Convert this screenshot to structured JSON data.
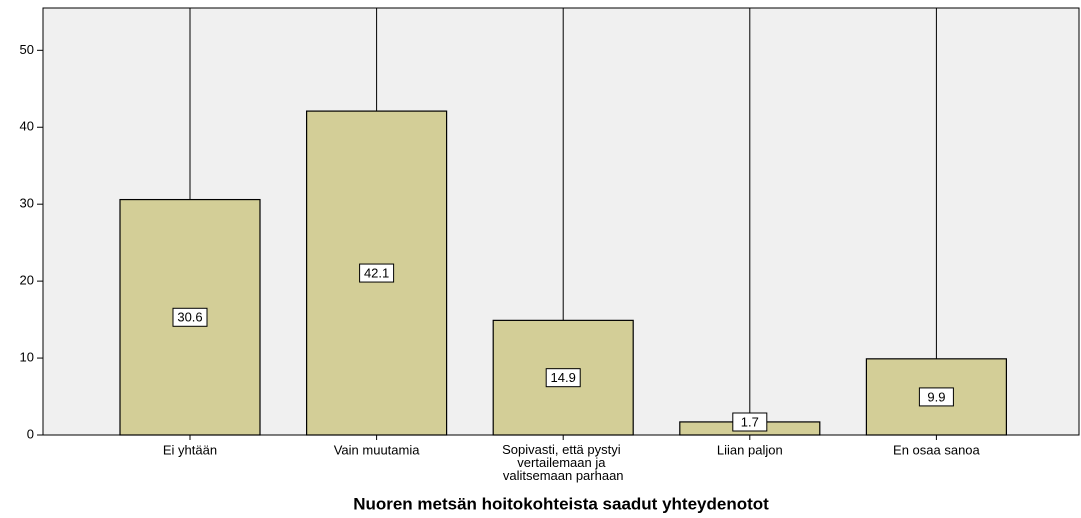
{
  "chart_data": {
    "type": "bar",
    "x_label": "Nuoren metsän hoitokohteista saadut yhteydenotot",
    "categories": [
      "Ei yhtään",
      "Vain muutamia",
      "Sopivasti, että pystyi vertailemaan ja valitsemaan parhaan",
      "Liian paljon",
      "En osaa sanoa"
    ],
    "values": [
      30.6,
      42.1,
      14.9,
      1.7,
      9.9
    ],
    "color": "#d3ce97",
    "ylim": [
      0,
      55.5
    ],
    "yticks": [
      0,
      10,
      20,
      30,
      40,
      50
    ],
    "grid": "x"
  }
}
